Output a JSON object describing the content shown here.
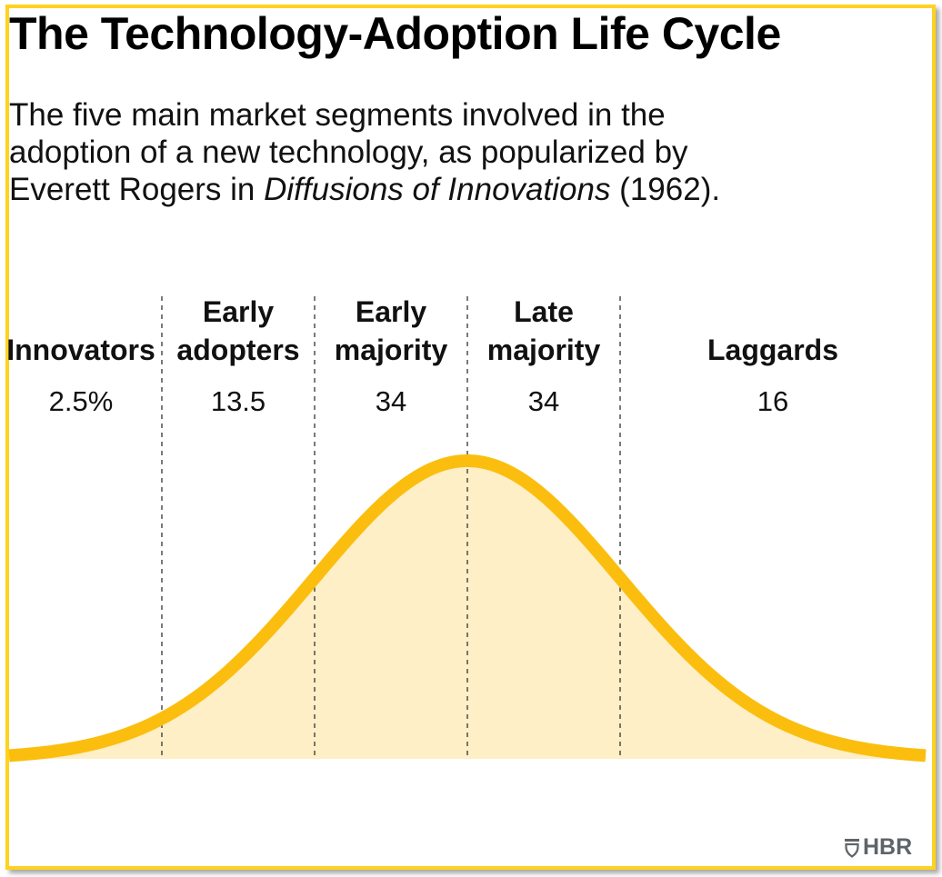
{
  "header": {
    "title": "The Technology-Adoption Life Cycle",
    "subtitle_line1": "The five main market segments involved in the",
    "subtitle_line2": "adoption of a new technology, as popularized by",
    "subtitle_line3_pre": "Everett Rogers in ",
    "subtitle_line3_italic": "Diffusions of Innovations",
    "subtitle_line3_post": " (1962)."
  },
  "colors": {
    "frame": "#FFD21F",
    "curve": "#FBBE0E",
    "fill": "#FEEFC7",
    "divider": "#333333",
    "logo": "#5f6469"
  },
  "chart_data": {
    "type": "area",
    "title": "The Technology-Adoption Life Cycle",
    "subtitle": "The five main market segments involved in the adoption of a new technology, as popularized by Everett Rogers in Diffusions of Innovations (1962).",
    "distribution": "normal",
    "x_range_sd": [
      -3,
      3
    ],
    "segment_boundaries_sd": [
      -2,
      -1,
      0,
      1
    ],
    "segments": [
      {
        "name": "Innovators",
        "label_lines": [
          "Innovators"
        ],
        "value": 2.5,
        "value_label": "2.5%"
      },
      {
        "name": "Early adopters",
        "label_lines": [
          "Early",
          "adopters"
        ],
        "value": 13.5,
        "value_label": "13.5"
      },
      {
        "name": "Early majority",
        "label_lines": [
          "Early",
          "majority"
        ],
        "value": 34,
        "value_label": "34"
      },
      {
        "name": "Late majority",
        "label_lines": [
          "Late",
          "majority"
        ],
        "value": 34,
        "value_label": "34"
      },
      {
        "name": "Laggards",
        "label_lines": [
          "Laggards"
        ],
        "value": 16,
        "value_label": "16"
      }
    ],
    "xlabel": "",
    "ylabel": "",
    "grid": false,
    "legend": "none"
  },
  "footer": {
    "logo_text": "HBR",
    "logo_icon": "shield-icon"
  }
}
